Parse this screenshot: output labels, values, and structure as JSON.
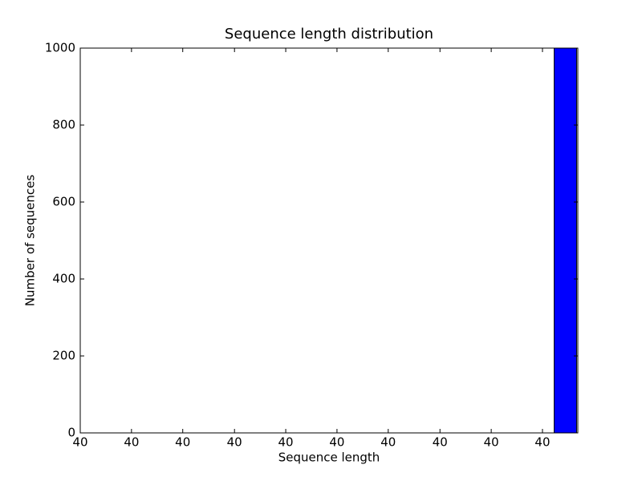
{
  "chart_data": {
    "type": "histogram",
    "title": "Sequence length distribution",
    "x_label": "Sequence length",
    "y_label": "Number of sequences",
    "bins": [
      39.99,
      39.9905,
      39.991,
      39.9915,
      39.992,
      39.9925,
      39.993,
      39.9935,
      39.994,
      39.9945,
      39.995,
      39.9955,
      39.996,
      39.9965,
      39.997,
      39.9975,
      39.998,
      39.9985,
      39.999,
      39.9995,
      40.0
    ],
    "values": [
      0,
      0,
      0,
      0,
      0,
      0,
      0,
      0,
      0,
      0,
      0,
      0,
      0,
      0,
      0,
      0,
      0,
      0,
      0,
      1000
    ],
    "color": "#0000ff",
    "xlim": [
      39.99,
      40.0
    ],
    "xticks": [
      {
        "value": 39.99,
        "label": "40"
      },
      {
        "value": 39.99103,
        "label": "40"
      },
      {
        "value": 39.99206,
        "label": "40"
      },
      {
        "value": 39.9931,
        "label": "40"
      },
      {
        "value": 39.99413,
        "label": "40"
      },
      {
        "value": 39.99516,
        "label": "40"
      },
      {
        "value": 39.99619,
        "label": "40"
      },
      {
        "value": 39.99723,
        "label": "40"
      },
      {
        "value": 39.99826,
        "label": "40"
      },
      {
        "value": 39.99929,
        "label": "40"
      }
    ],
    "ylim": [
      0,
      1000
    ],
    "yticks": [
      0,
      200,
      400,
      600,
      800,
      1000
    ],
    "grid": false
  }
}
